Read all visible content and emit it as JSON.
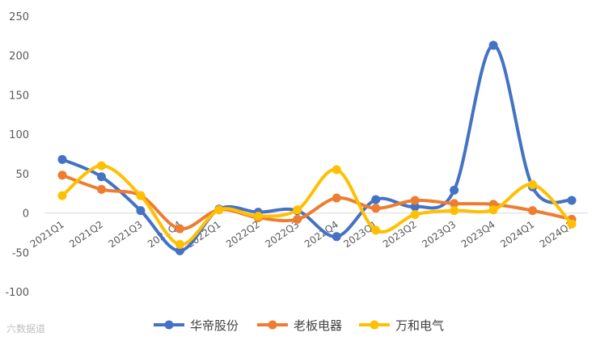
{
  "chart_data": {
    "type": "line",
    "categories": [
      "2021Q1",
      "2021Q2",
      "2021Q3",
      "2021Q4",
      "2022Q1",
      "2022Q2",
      "2022Q3",
      "2022Q4",
      "2023Q1",
      "2023Q2",
      "2023Q3",
      "2023Q4",
      "2024Q1",
      "2024Q2"
    ],
    "ylim": [
      -100,
      250
    ],
    "yticks": [
      -100,
      -50,
      0,
      50,
      100,
      150,
      200,
      250
    ],
    "grid": false,
    "legend_position": "bottom",
    "series": [
      {
        "name": "华帝股份",
        "color": "#4472C4",
        "values": [
          68,
          46,
          3,
          -48,
          5,
          1,
          3,
          -30,
          17,
          8,
          29,
          213,
          33,
          16
        ]
      },
      {
        "name": "老板电器",
        "color": "#ED7D31",
        "values": [
          48,
          30,
          22,
          -20,
          4,
          -6,
          -8,
          19,
          6,
          16,
          12,
          11,
          3,
          -8
        ]
      },
      {
        "name": "万和电气",
        "color": "#FFC000",
        "values": [
          22,
          60,
          22,
          -40,
          4,
          -4,
          4,
          55,
          -22,
          -2,
          3,
          4,
          36,
          -14
        ]
      }
    ]
  },
  "watermark": "六数据道"
}
